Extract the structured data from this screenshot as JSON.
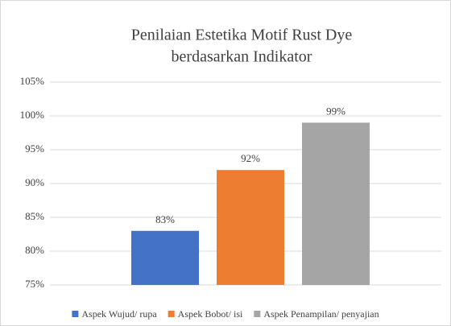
{
  "chart_data": {
    "type": "bar",
    "title": [
      "Penilaian Estetika Motif Rust Dye",
      "berdasarkan Indikator"
    ],
    "series": [
      {
        "name": "Aspek Wujud/ rupa",
        "color": "#4472c4",
        "values": [
          83
        ],
        "value_labels": [
          "83%"
        ]
      },
      {
        "name": "Aspek Bobot/ isi",
        "color": "#ed7d31",
        "values": [
          92
        ],
        "value_labels": [
          "92%"
        ]
      },
      {
        "name": "Aspek Penampilan/ penyajian",
        "color": "#a5a5a5",
        "values": [
          99
        ],
        "value_labels": [
          "99%"
        ]
      }
    ],
    "ylim": [
      75,
      105
    ],
    "yticks": [
      {
        "value": 75,
        "label": "75%"
      },
      {
        "value": 80,
        "label": "80%"
      },
      {
        "value": 85,
        "label": "85%"
      },
      {
        "value": 90,
        "label": "90%"
      },
      {
        "value": 95,
        "label": "95%"
      },
      {
        "value": 100,
        "label": "100%"
      },
      {
        "value": 105,
        "label": "105%"
      }
    ],
    "grid": true,
    "legend": "bottom"
  }
}
